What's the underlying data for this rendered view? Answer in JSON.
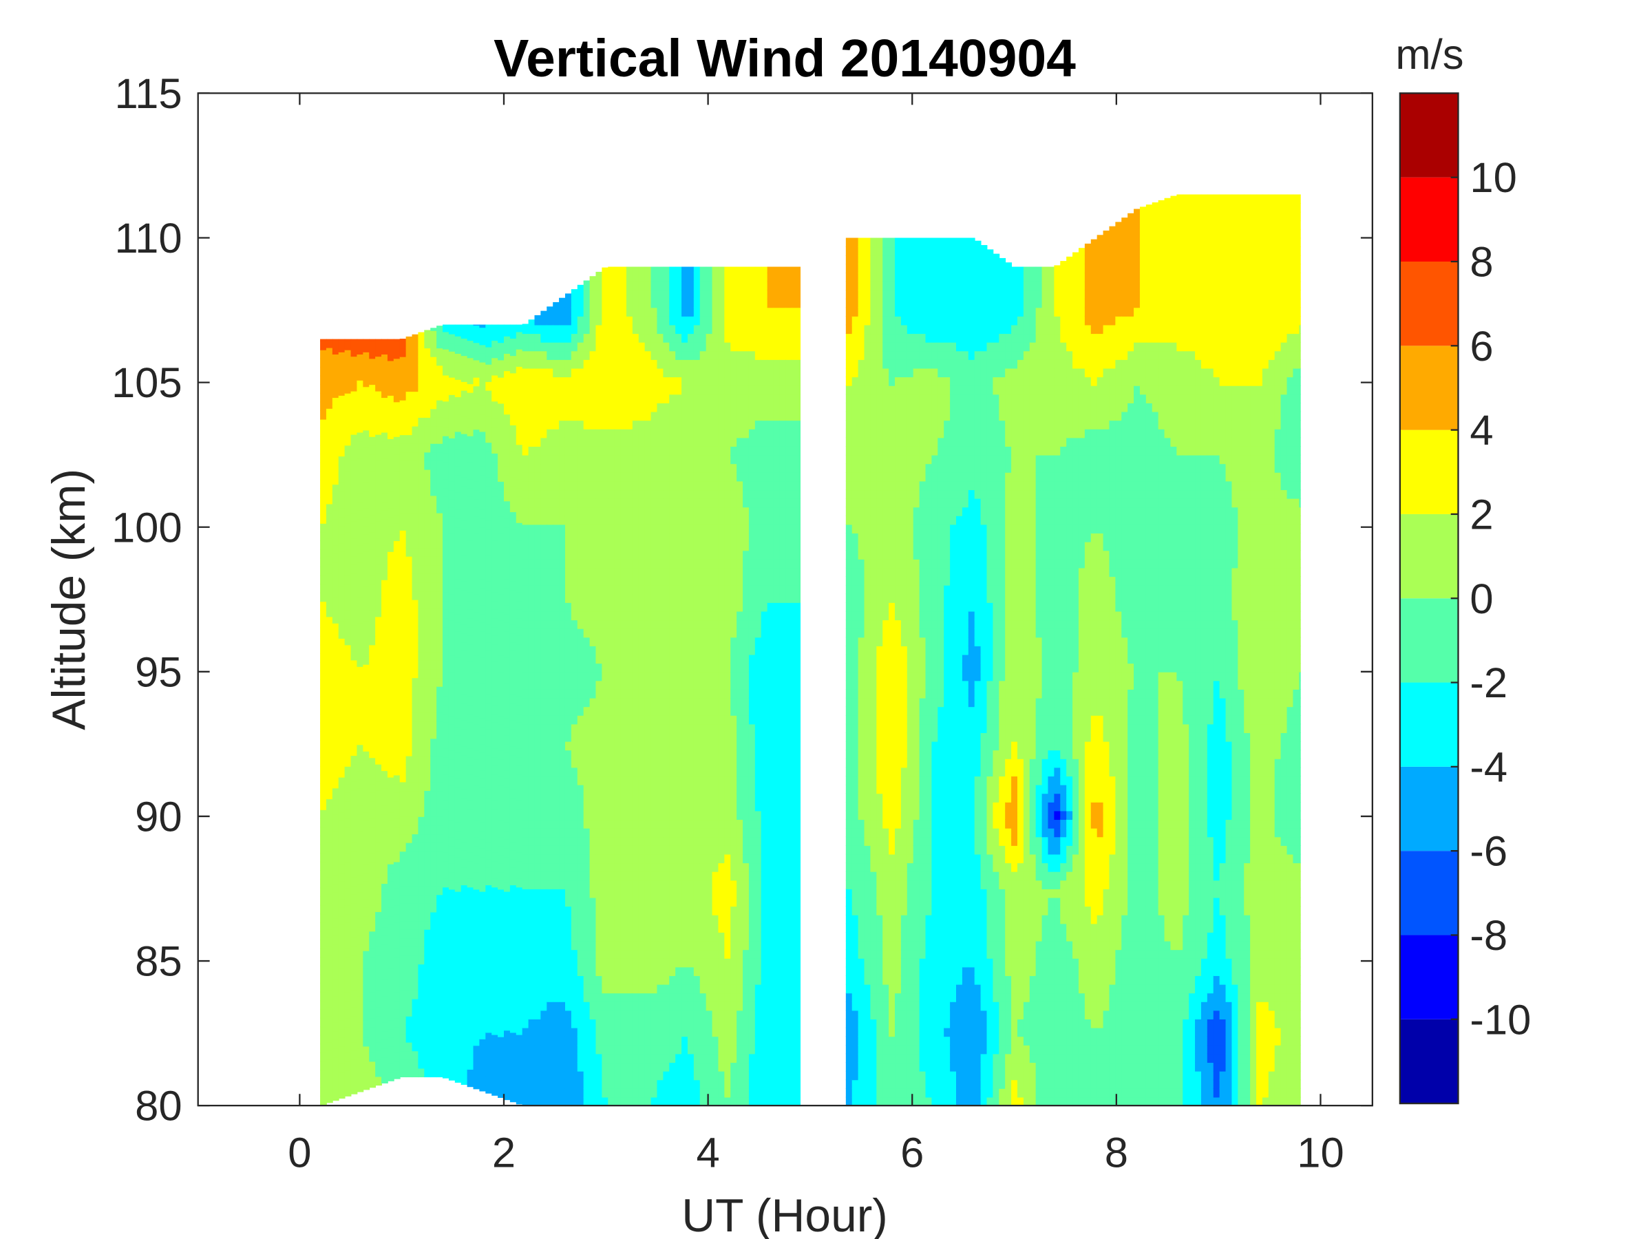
{
  "chart_data": {
    "type": "heatmap",
    "title": "Vertical Wind 20140904",
    "xlabel": "UT (Hour)",
    "ylabel": "Altitude (km)",
    "colorbar_label": "m/s",
    "xlim": [
      -1,
      10.5
    ],
    "ylim": [
      80,
      115
    ],
    "xticks": [
      "0",
      "2",
      "4",
      "6",
      "8",
      "10"
    ],
    "xtick_values": [
      0,
      2,
      4,
      6,
      8,
      10
    ],
    "yticks": [
      "80",
      "85",
      "90",
      "95",
      "100",
      "105",
      "110",
      "115"
    ],
    "ytick_values": [
      80,
      85,
      90,
      95,
      100,
      105,
      110,
      115
    ],
    "colorbar": {
      "range": [
        -12,
        12
      ],
      "levels": [
        -12,
        -10,
        -8,
        -6,
        -4,
        -2,
        0,
        2,
        4,
        6,
        8,
        10,
        12
      ],
      "colors": [
        "#0000aa",
        "#0000ff",
        "#0055ff",
        "#00aaff",
        "#00ffff",
        "#55ffaa",
        "#aaff55",
        "#ffff00",
        "#ffaa00",
        "#ff5500",
        "#ff0000",
        "#aa0000"
      ],
      "tick_labels": [
        "10",
        "8",
        "6",
        "4",
        "2",
        "0",
        "-2",
        "-4",
        "-6",
        "-8",
        "-10"
      ],
      "tick_values": [
        10,
        8,
        6,
        4,
        2,
        0,
        -2,
        -4,
        -6,
        -8,
        -10
      ]
    },
    "data_gap_hours": [
      4.9,
      5.35
    ],
    "x": [
      0.2,
      0.6,
      1.0,
      1.4,
      1.8,
      2.2,
      2.6,
      3.0,
      3.4,
      3.8,
      4.2,
      4.6,
      5.4,
      5.8,
      6.2,
      6.6,
      7.0,
      7.4,
      7.8,
      8.2,
      8.6,
      9.0,
      9.4,
      9.8
    ],
    "y": [
      80,
      82.5,
      85,
      87.5,
      90,
      92.5,
      95,
      97.5,
      100,
      102.5,
      105,
      107.5
    ],
    "top_altitude": [
      106.5,
      106.5,
      106.5,
      107,
      107,
      107,
      108,
      109,
      109,
      109,
      109,
      109,
      110,
      110,
      110,
      110,
      109,
      109,
      110,
      111,
      111.5,
      111.5,
      111.5,
      111.5
    ],
    "bottom_altitude": [
      80,
      80.5,
      81,
      81,
      80.5,
      80,
      80,
      80,
      80,
      80,
      80,
      80,
      80,
      80,
      80,
      80,
      80,
      80,
      80,
      80,
      80,
      80,
      80,
      80
    ],
    "values": [
      [
        2,
        2,
        2,
        2,
        2,
        3,
        3,
        2,
        2,
        3,
        5,
        7
      ],
      [
        1,
        0,
        0,
        1,
        1,
        2,
        2,
        1,
        1,
        1,
        4,
        9
      ],
      [
        0,
        -2,
        -1,
        -1,
        1,
        3,
        3,
        3,
        2,
        1,
        5,
        8
      ],
      [
        -3,
        -3,
        -3,
        -2,
        -1,
        -1,
        0,
        0,
        0,
        -1,
        3,
        -4
      ],
      [
        -5,
        -4,
        -3,
        -2,
        -1,
        -1,
        -1,
        0,
        -1,
        -1,
        2,
        -6
      ],
      [
        -5,
        -4,
        -3,
        -2,
        -1,
        -1,
        -1,
        -1,
        0,
        2,
        4,
        -5
      ],
      [
        -6,
        -5,
        -3,
        -2,
        -1,
        0,
        -1,
        0,
        0,
        1,
        3,
        -6
      ],
      [
        -2,
        -1,
        1,
        1,
        1,
        1,
        0,
        1,
        0,
        1,
        4,
        3
      ],
      [
        -2,
        -1,
        1,
        1,
        1,
        1,
        1,
        0,
        1,
        1,
        3,
        1
      ],
      [
        -3,
        -2,
        0,
        1,
        1,
        1,
        1,
        1,
        1,
        0,
        2,
        -5
      ],
      [
        0,
        1,
        2,
        3,
        1,
        1,
        0,
        1,
        1,
        0,
        1,
        3
      ],
      [
        -4,
        -4,
        -3,
        -3,
        -3,
        -4,
        -4,
        -2,
        -1,
        -1,
        1,
        4
      ],
      [
        -4,
        -5,
        -3,
        -2,
        -1,
        -1,
        -1,
        -1,
        0,
        0,
        2,
        5
      ],
      [
        -1,
        0,
        1,
        1,
        3,
        4,
        4,
        2,
        1,
        1,
        0,
        -2
      ],
      [
        -2,
        -3,
        -3,
        -2,
        -2,
        -2,
        -1,
        -1,
        -1,
        0,
        1,
        -4
      ],
      [
        -5,
        -6,
        -4,
        -3,
        -2,
        -3,
        -5,
        -4,
        -3,
        -1,
        -1,
        -4
      ],
      [
        3,
        0,
        1,
        1,
        6,
        2,
        2,
        1,
        1,
        0,
        1,
        -3
      ],
      [
        -2,
        -1,
        -1,
        0,
        -9,
        -2,
        -1,
        -1,
        -1,
        0,
        1,
        2
      ],
      [
        -1,
        0,
        1,
        3,
        5,
        3,
        1,
        1,
        0,
        -1,
        2,
        5
      ],
      [
        0,
        -1,
        -1,
        -1,
        -1,
        -1,
        0,
        -1,
        -1,
        -1,
        0,
        4
      ],
      [
        -1,
        -1,
        0,
        1,
        1,
        1,
        0,
        0,
        0,
        0,
        1,
        3
      ],
      [
        -6,
        -8,
        -3,
        -2,
        -3,
        -3,
        -2,
        -1,
        -1,
        0,
        2,
        3
      ],
      [
        2,
        3,
        1,
        1,
        1,
        1,
        2,
        2,
        1,
        1,
        2,
        4
      ],
      [
        1,
        1,
        1,
        1,
        -2,
        -1,
        0,
        1,
        1,
        -2,
        -1,
        3
      ]
    ]
  }
}
